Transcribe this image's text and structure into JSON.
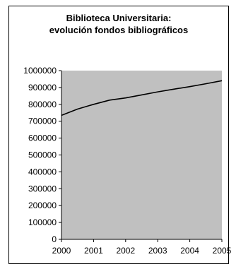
{
  "chart_data": {
    "type": "line",
    "title": "Biblioteca Universitaria:",
    "subtitle": "evolución fondos bibliográficos",
    "x": [
      2000,
      2000.5,
      2001,
      2001.5,
      2002,
      2002.5,
      2003,
      2003.5,
      2004,
      2004.5,
      2005
    ],
    "series": [
      {
        "values": [
          735000,
          772000,
          800000,
          825000,
          838000,
          856000,
          874000,
          890000,
          905000,
          922000,
          940000
        ]
      }
    ],
    "xlim": [
      2000,
      2005
    ],
    "ylim": [
      0,
      1000000
    ],
    "x_ticks": [
      "2000",
      "2001",
      "2002",
      "2003",
      "2004",
      "2005"
    ],
    "y_ticks": [
      "0",
      "100000",
      "200000",
      "300000",
      "400000",
      "500000",
      "600000",
      "700000",
      "800000",
      "900000",
      "1000000"
    ],
    "plot_background": "#c0c0c0",
    "line_color": "#000000",
    "grid": false,
    "legend": "none"
  }
}
